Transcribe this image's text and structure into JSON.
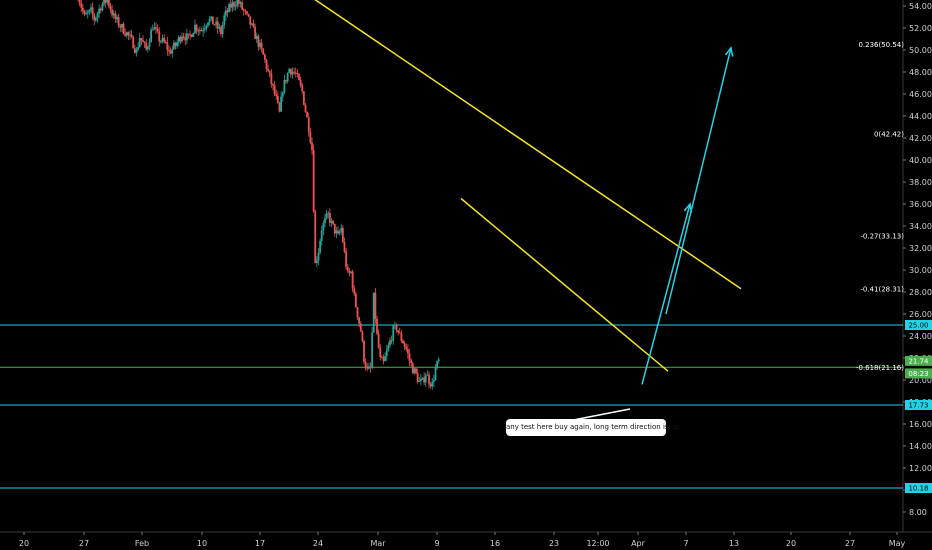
{
  "chart_data": {
    "type": "candlestick",
    "y_axis": {
      "range": [
        7,
        55
      ],
      "ticks": [
        "54.00",
        "52.00",
        "50.00",
        "48.00",
        "46.00",
        "44.00",
        "42.00",
        "40.00",
        "38.00",
        "36.00",
        "34.00",
        "32.00",
        "30.00",
        "28.00",
        "26.00",
        "24.00",
        "22.00",
        "20.00",
        "18.00",
        "16.00",
        "14.00",
        "12.00",
        "10.00",
        "8.00"
      ]
    },
    "x_axis": {
      "ticks": [
        "20",
        "27",
        "Feb",
        "10",
        "17",
        "24",
        "Mar",
        "9",
        "16",
        "23",
        "12:00",
        "Apr",
        "7",
        "13",
        "20",
        "27",
        "May"
      ]
    },
    "horizontal_lines": [
      {
        "price": 25.0,
        "label": "25.00",
        "color": "#22d3e6"
      },
      {
        "price": 17.73,
        "label": "17.73",
        "color": "#22d3e6"
      },
      {
        "price": 10.18,
        "label": "10.18",
        "color": "#22d3e6"
      },
      {
        "price": 21.16,
        "label": "",
        "color": "#4caf50"
      }
    ],
    "fib_levels": [
      {
        "label": "0.236(50.54)",
        "price": 50.54
      },
      {
        "label": "0(42.42)",
        "price": 42.42
      },
      {
        "label": "-0.27(33.13)",
        "price": 33.13
      },
      {
        "label": "-0.41(28.31)",
        "price": 28.31
      },
      {
        "label": "-0.618(21.16)",
        "price": 21.16
      }
    ],
    "price_tags": [
      {
        "label": "21.74",
        "price": 21.74,
        "color": "#4caf50"
      },
      {
        "label": "08:23",
        "price": 20.6,
        "color": "#4caf50"
      }
    ],
    "trendlines": [
      {
        "color": "#f5e326",
        "from": {
          "x": "Feb 22",
          "y": 55.2
        },
        "to": {
          "x": "Apr 15",
          "y": 28.3
        }
      },
      {
        "color": "#f5e326",
        "from": {
          "x": "Mar 12",
          "y": 36.5
        },
        "to": {
          "x": "Apr 5",
          "y": 20.8
        }
      }
    ],
    "arrows": [
      {
        "color": "#22d3e6",
        "from": {
          "x": "Apr 2",
          "y": 19.6
        },
        "to": {
          "x": "Apr 11",
          "y": 36.0
        }
      },
      {
        "color": "#22d3e6",
        "from": {
          "x": "Apr 8",
          "y": 26.0
        },
        "to": {
          "x": "Apr 14",
          "y": 50.2
        }
      }
    ],
    "candle_colors": {
      "up": "#26a69a",
      "down": "#ef5350"
    },
    "price_path": [
      [
        0,
        55.0
      ],
      [
        2,
        53.0
      ],
      [
        4,
        53.5
      ],
      [
        5,
        52.8
      ],
      [
        7,
        54.0
      ],
      [
        9,
        54.6
      ],
      [
        11,
        53.0
      ],
      [
        13,
        52.2
      ],
      [
        15,
        51.5
      ],
      [
        17,
        50.6
      ],
      [
        18,
        49.8
      ],
      [
        19,
        51.2
      ],
      [
        21,
        50.0
      ],
      [
        23,
        52.2
      ],
      [
        25,
        51.0
      ],
      [
        27,
        50.5
      ],
      [
        28,
        49.8
      ],
      [
        30,
        50.4
      ],
      [
        32,
        51.5
      ],
      [
        34,
        51.0
      ],
      [
        36,
        52.2
      ],
      [
        38,
        51.8
      ],
      [
        40,
        52.8
      ],
      [
        42,
        52.4
      ],
      [
        44,
        51.6
      ],
      [
        45,
        53.0
      ],
      [
        47,
        54.0
      ],
      [
        49,
        54.5
      ],
      [
        51,
        53.5
      ],
      [
        53,
        52.4
      ],
      [
        55,
        51.0
      ],
      [
        57,
        49.5
      ],
      [
        59,
        47.5
      ],
      [
        61,
        45.5
      ],
      [
        62,
        44.2
      ],
      [
        63,
        46.5
      ],
      [
        65,
        48.3
      ],
      [
        67,
        47.8
      ],
      [
        69,
        46.2
      ],
      [
        70,
        44.5
      ],
      [
        71,
        43.0
      ],
      [
        72,
        41.0
      ],
      [
        73,
        30.5
      ],
      [
        74,
        31.8
      ],
      [
        75,
        33.8
      ],
      [
        77,
        35.0
      ],
      [
        78,
        34.2
      ],
      [
        80,
        33.0
      ],
      [
        81,
        33.8
      ],
      [
        82,
        31.5
      ],
      [
        83,
        29.5
      ],
      [
        84,
        29.8
      ],
      [
        85,
        27.5
      ],
      [
        86,
        26.0
      ],
      [
        87,
        24.5
      ],
      [
        88,
        22.0
      ],
      [
        89,
        20.8
      ],
      [
        90,
        21.0
      ],
      [
        91,
        27.5
      ],
      [
        92,
        24.0
      ],
      [
        93,
        21.8
      ],
      [
        94,
        21.5
      ],
      [
        95,
        22.5
      ],
      [
        96,
        23.5
      ],
      [
        97,
        24.5
      ],
      [
        98,
        24.8
      ],
      [
        99,
        24.0
      ],
      [
        100,
        23.5
      ],
      [
        101,
        22.8
      ],
      [
        102,
        21.8
      ],
      [
        103,
        21.0
      ],
      [
        104,
        20.5
      ],
      [
        105,
        19.8
      ],
      [
        106,
        19.8
      ],
      [
        107,
        20.6
      ],
      [
        108,
        20.0
      ],
      [
        109,
        19.6
      ],
      [
        110,
        21.0
      ],
      [
        111,
        21.7
      ]
    ]
  },
  "callout": {
    "text": "any test here buy again, long term direction is up"
  }
}
